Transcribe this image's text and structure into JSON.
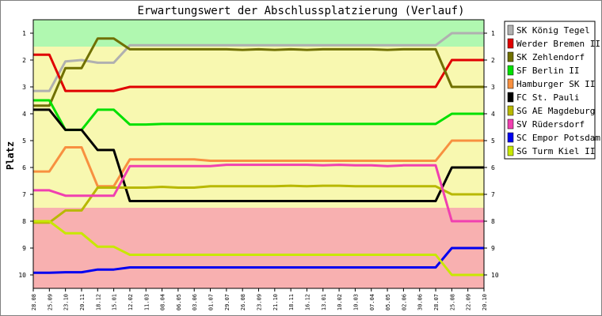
{
  "chart_data": {
    "type": "line",
    "title": "Erwartungswert der Abschlussplatzierung (Verlauf)",
    "xlabel": "",
    "ylabel": "Platz",
    "x": [
      "28.08",
      "25.09",
      "23.10",
      "20.11",
      "18.12",
      "15.01",
      "12.02",
      "11.03",
      "08.04",
      "06.05",
      "03.06",
      "01.07",
      "29.07",
      "26.08",
      "23.09",
      "21.10",
      "18.11",
      "16.12",
      "13.01",
      "10.02",
      "10.03",
      "07.04",
      "05.05",
      "02.06",
      "30.06",
      "28.07",
      "25.08",
      "22.09",
      "20.10"
    ],
    "ylim": [
      0.5,
      10.5
    ],
    "y_reversed": true,
    "y_ticks": [
      1,
      2,
      3,
      4,
      5,
      6,
      7,
      8,
      9,
      10
    ],
    "grid": false,
    "legend_position": "right",
    "zones": [
      {
        "from": 0.5,
        "to": 1.5,
        "color": "#b0f8b0"
      },
      {
        "from": 1.5,
        "to": 7.5,
        "color": "#f8f8b0"
      },
      {
        "from": 7.5,
        "to": 10.5,
        "color": "#f8b0b0"
      }
    ],
    "series": [
      {
        "name": "SK König Tegel",
        "color": "#b0b0b0",
        "values": [
          3.15,
          3.15,
          2.05,
          2.0,
          2.1,
          2.1,
          1.45,
          1.45,
          1.45,
          1.45,
          1.45,
          1.45,
          1.45,
          1.45,
          1.45,
          1.45,
          1.45,
          1.45,
          1.45,
          1.45,
          1.45,
          1.45,
          1.45,
          1.45,
          1.45,
          1.45,
          1.0,
          1.0,
          1.0
        ]
      },
      {
        "name": "Werder Bremen II",
        "color": "#e00000",
        "values": [
          1.8,
          1.8,
          3.15,
          3.15,
          3.15,
          3.15,
          3.0,
          3.0,
          3.0,
          3.0,
          3.0,
          3.0,
          3.0,
          3.0,
          3.0,
          3.0,
          3.0,
          3.0,
          3.0,
          3.0,
          3.0,
          3.0,
          3.0,
          3.0,
          3.0,
          3.0,
          2.0,
          2.0,
          2.0
        ]
      },
      {
        "name": "SK Zehlendorf",
        "color": "#707000",
        "values": [
          3.7,
          3.7,
          2.3,
          2.3,
          1.2,
          1.2,
          1.6,
          1.6,
          1.6,
          1.6,
          1.6,
          1.6,
          1.6,
          1.62,
          1.6,
          1.62,
          1.6,
          1.62,
          1.6,
          1.6,
          1.6,
          1.6,
          1.62,
          1.6,
          1.6,
          1.6,
          3.0,
          3.0,
          3.0
        ]
      },
      {
        "name": "SF Berlin II",
        "color": "#00e000",
        "values": [
          3.5,
          3.5,
          4.6,
          4.6,
          3.85,
          3.85,
          4.4,
          4.4,
          4.38,
          4.38,
          4.38,
          4.38,
          4.38,
          4.38,
          4.38,
          4.38,
          4.38,
          4.38,
          4.38,
          4.38,
          4.38,
          4.38,
          4.38,
          4.38,
          4.38,
          4.38,
          4.0,
          4.0,
          4.0
        ]
      },
      {
        "name": "Hamburger SK II",
        "color": "#f89040",
        "values": [
          6.15,
          6.15,
          5.25,
          5.25,
          6.7,
          6.7,
          5.7,
          5.7,
          5.7,
          5.7,
          5.7,
          5.75,
          5.75,
          5.75,
          5.75,
          5.75,
          5.75,
          5.75,
          5.75,
          5.75,
          5.75,
          5.75,
          5.75,
          5.75,
          5.75,
          5.75,
          5.0,
          5.0,
          5.0
        ]
      },
      {
        "name": "FC St. Pauli",
        "color": "#000000",
        "values": [
          3.85,
          3.85,
          4.6,
          4.6,
          5.35,
          5.35,
          7.25,
          7.25,
          7.25,
          7.25,
          7.25,
          7.25,
          7.25,
          7.25,
          7.25,
          7.25,
          7.25,
          7.25,
          7.25,
          7.25,
          7.25,
          7.25,
          7.25,
          7.25,
          7.25,
          7.25,
          6.0,
          6.0,
          6.0
        ]
      },
      {
        "name": "SG AE Magdeburg",
        "color": "#b8b800",
        "values": [
          8.05,
          8.05,
          7.6,
          7.6,
          6.75,
          6.75,
          6.75,
          6.75,
          6.72,
          6.75,
          6.75,
          6.7,
          6.7,
          6.7,
          6.7,
          6.7,
          6.68,
          6.7,
          6.68,
          6.68,
          6.7,
          6.7,
          6.7,
          6.7,
          6.7,
          6.7,
          7.0,
          7.0,
          7.0
        ]
      },
      {
        "name": "SV Rüdersdorf",
        "color": "#f040b0",
        "values": [
          6.85,
          6.85,
          7.05,
          7.05,
          7.05,
          7.05,
          5.95,
          5.95,
          5.95,
          5.95,
          5.95,
          5.95,
          5.9,
          5.9,
          5.9,
          5.9,
          5.9,
          5.9,
          5.92,
          5.9,
          5.92,
          5.92,
          5.95,
          5.92,
          5.92,
          5.92,
          8.0,
          8.0,
          8.0
        ]
      },
      {
        "name": "SC Empor Potsdam",
        "color": "#0000f0",
        "values": [
          9.92,
          9.92,
          9.9,
          9.9,
          9.8,
          9.8,
          9.72,
          9.72,
          9.72,
          9.72,
          9.72,
          9.72,
          9.72,
          9.72,
          9.72,
          9.72,
          9.72,
          9.72,
          9.72,
          9.72,
          9.72,
          9.72,
          9.72,
          9.72,
          9.72,
          9.72,
          9.0,
          9.0,
          9.0
        ]
      },
      {
        "name": "SG Turm Kiel II",
        "color": "#c8e800",
        "values": [
          8.0,
          8.0,
          8.45,
          8.45,
          8.95,
          8.95,
          9.25,
          9.25,
          9.25,
          9.25,
          9.25,
          9.25,
          9.25,
          9.25,
          9.25,
          9.25,
          9.25,
          9.25,
          9.25,
          9.25,
          9.25,
          9.25,
          9.25,
          9.25,
          9.25,
          9.25,
          10.0,
          10.0,
          10.0
        ]
      }
    ]
  }
}
